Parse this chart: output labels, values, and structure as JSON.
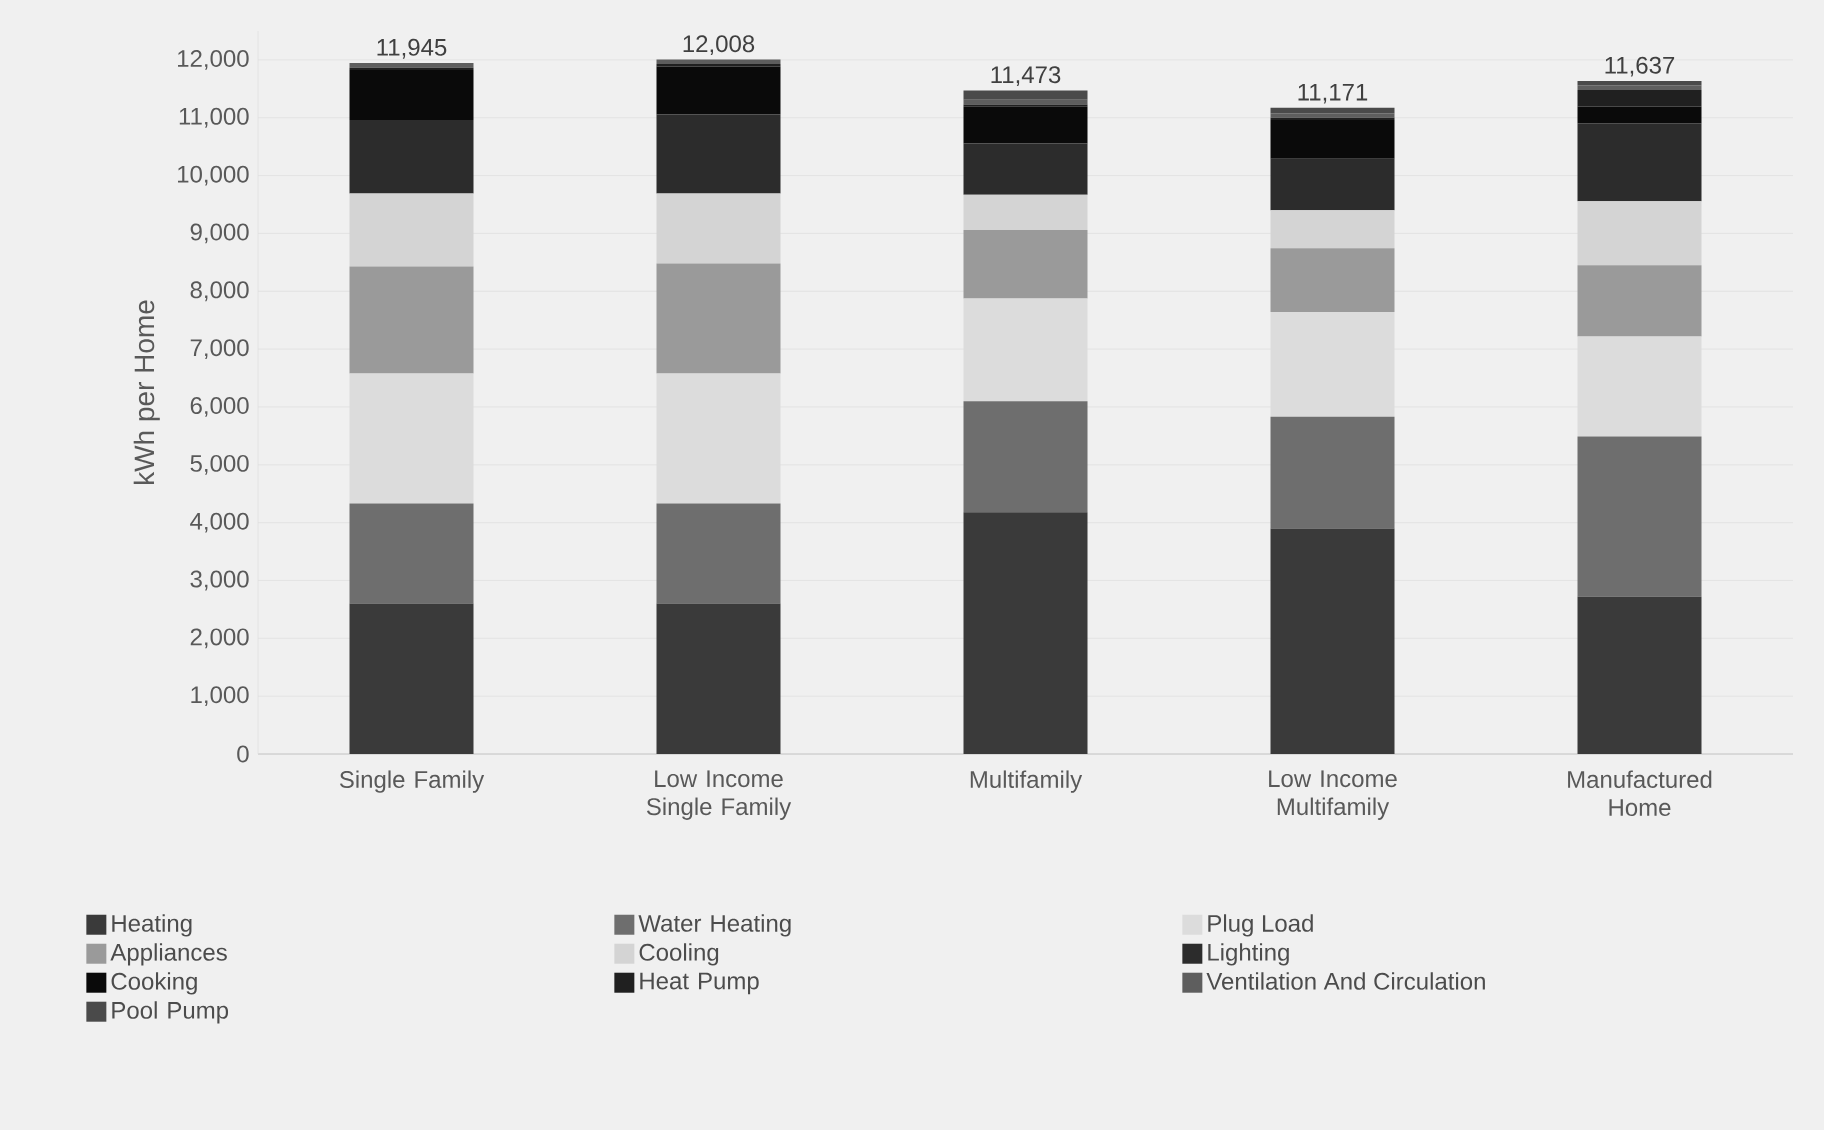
{
  "chart_data": {
    "type": "bar",
    "stacked": true,
    "ylabel": "kWh per Home",
    "categories": [
      "Single Family",
      "Low Income Single Family",
      "Multifamily",
      "Low Income Multifamily",
      "Manufactured Home"
    ],
    "ylim": [
      0,
      12500
    ],
    "yticks": [
      {
        "value": 0,
        "label": "0"
      },
      {
        "value": 1000,
        "label": "1,000"
      },
      {
        "value": 2000,
        "label": "2,000"
      },
      {
        "value": 3000,
        "label": "3,000"
      },
      {
        "value": 4000,
        "label": "4,000"
      },
      {
        "value": 5000,
        "label": "5,000"
      },
      {
        "value": 6000,
        "label": "6,000"
      },
      {
        "value": 7000,
        "label": "7,000"
      },
      {
        "value": 8000,
        "label": "8,000"
      },
      {
        "value": 9000,
        "label": "9,000"
      },
      {
        "value": 10000,
        "label": "10,000"
      },
      {
        "value": 11000,
        "label": "11,000"
      },
      {
        "value": 12000,
        "label": "12,000"
      }
    ],
    "grid": "y",
    "legend": "bottom",
    "totals": [
      "11,945",
      "12,008",
      "11,473",
      "11,171",
      "11,637"
    ],
    "series": [
      {
        "name": "Heating",
        "color": "#3a3a3a",
        "values": [
          2600,
          2600,
          4180,
          3900,
          2720
        ]
      },
      {
        "name": "Water Heating",
        "color": "#6e6e6e",
        "values": [
          1730,
          1730,
          1920,
          1930,
          2770
        ]
      },
      {
        "name": "Plug Load",
        "color": "#dcdcdc",
        "values": [
          2250,
          2250,
          1775,
          1810,
          1730
        ]
      },
      {
        "name": "Appliances",
        "color": "#9a9a9a",
        "values": [
          1850,
          1900,
          1185,
          1105,
          1230
        ]
      },
      {
        "name": "Cooling",
        "color": "#d4d4d4",
        "values": [
          1260,
          1210,
          610,
          655,
          1105
        ]
      },
      {
        "name": "Lighting",
        "color": "#2c2c2c",
        "values": [
          1270,
          1365,
          885,
          890,
          1350
        ]
      },
      {
        "name": "Cooking",
        "color": "#0a0a0a",
        "values": [
          865,
          830,
          635,
          670,
          290
        ]
      },
      {
        "name": "Heat Pump",
        "color": "#202020",
        "values": [
          40,
          43,
          40,
          40,
          285
        ]
      },
      {
        "name": "Ventilation And Circulation",
        "color": "#5e5e5e",
        "values": [
          80,
          80,
          80,
          80,
          80
        ]
      },
      {
        "name": "Pool Pump",
        "color": "#4a4a4a",
        "values": [
          0,
          0,
          163,
          91,
          77
        ]
      }
    ]
  }
}
